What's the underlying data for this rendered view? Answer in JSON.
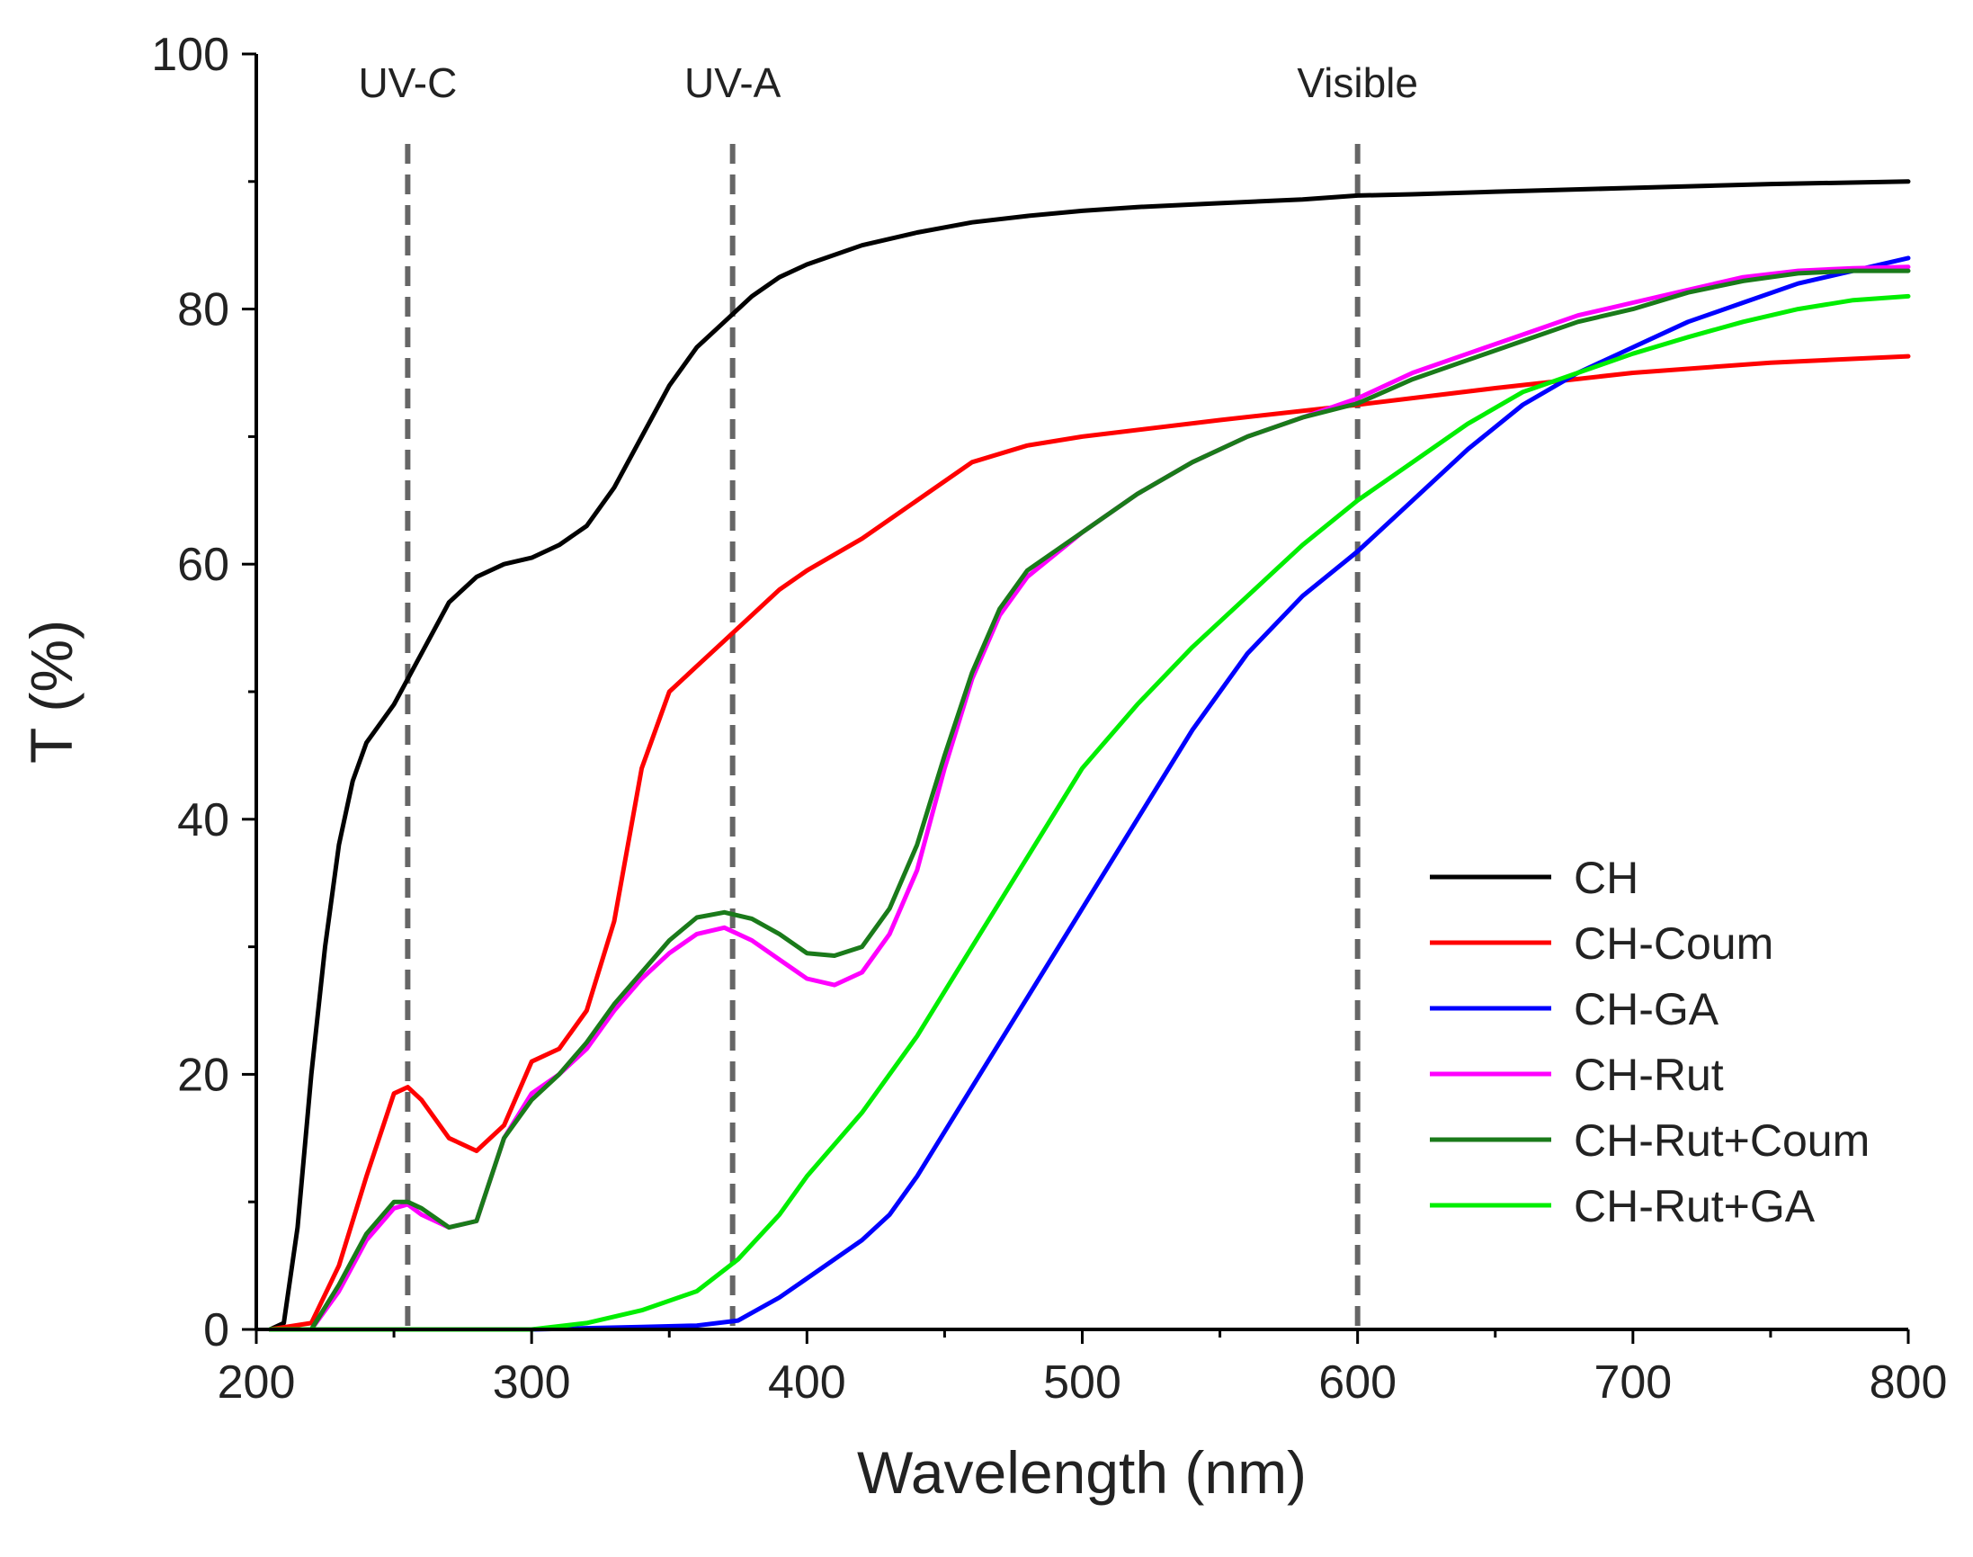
{
  "chart_data": {
    "type": "line",
    "xlabel": "Wavelength (nm)",
    "ylabel": "T (%)",
    "xlim": [
      200,
      800
    ],
    "ylim": [
      0,
      100
    ],
    "x_ticks": [
      200,
      300,
      400,
      500,
      600,
      700,
      800
    ],
    "y_ticks": [
      0,
      20,
      40,
      60,
      80,
      100
    ],
    "grid": false,
    "legend_position": "bottom-right",
    "regions": [
      {
        "label": "UV-C",
        "x": 255
      },
      {
        "label": "UV-A",
        "x": 373
      },
      {
        "label": "Visible",
        "x": 600
      }
    ],
    "series": [
      {
        "name": "CH",
        "color": "#000000",
        "points": [
          [
            205,
            0
          ],
          [
            210,
            0.5
          ],
          [
            215,
            8
          ],
          [
            220,
            20
          ],
          [
            225,
            30
          ],
          [
            230,
            38
          ],
          [
            235,
            43
          ],
          [
            240,
            46
          ],
          [
            250,
            49
          ],
          [
            260,
            53
          ],
          [
            270,
            57
          ],
          [
            280,
            59
          ],
          [
            290,
            60
          ],
          [
            300,
            60.5
          ],
          [
            310,
            61.5
          ],
          [
            320,
            63
          ],
          [
            330,
            66
          ],
          [
            340,
            70
          ],
          [
            350,
            74
          ],
          [
            360,
            77
          ],
          [
            370,
            79
          ],
          [
            380,
            81
          ],
          [
            390,
            82.5
          ],
          [
            400,
            83.5
          ],
          [
            420,
            85
          ],
          [
            440,
            86
          ],
          [
            460,
            86.8
          ],
          [
            480,
            87.3
          ],
          [
            500,
            87.7
          ],
          [
            520,
            88
          ],
          [
            550,
            88.3
          ],
          [
            580,
            88.6
          ],
          [
            600,
            88.9
          ],
          [
            620,
            89
          ],
          [
            650,
            89.2
          ],
          [
            700,
            89.5
          ],
          [
            750,
            89.8
          ],
          [
            800,
            90
          ]
        ]
      },
      {
        "name": "CH-Coum",
        "color": "#ff0000",
        "points": [
          [
            205,
            0
          ],
          [
            220,
            0.5
          ],
          [
            230,
            5
          ],
          [
            240,
            12
          ],
          [
            250,
            18.5
          ],
          [
            255,
            19
          ],
          [
            260,
            18
          ],
          [
            270,
            15
          ],
          [
            280,
            14
          ],
          [
            290,
            16
          ],
          [
            300,
            21
          ],
          [
            310,
            22
          ],
          [
            320,
            25
          ],
          [
            330,
            32
          ],
          [
            340,
            44
          ],
          [
            350,
            50
          ],
          [
            360,
            52
          ],
          [
            370,
            54
          ],
          [
            380,
            56
          ],
          [
            390,
            58
          ],
          [
            400,
            59.5
          ],
          [
            420,
            62
          ],
          [
            440,
            65
          ],
          [
            460,
            68
          ],
          [
            480,
            69.3
          ],
          [
            500,
            70
          ],
          [
            550,
            71.3
          ],
          [
            600,
            72.5
          ],
          [
            650,
            73.8
          ],
          [
            700,
            75
          ],
          [
            750,
            75.8
          ],
          [
            800,
            76.3
          ]
        ]
      },
      {
        "name": "CH-GA",
        "color": "#0000ff",
        "points": [
          [
            205,
            0
          ],
          [
            300,
            0
          ],
          [
            340,
            0.2
          ],
          [
            360,
            0.3
          ],
          [
            375,
            0.7
          ],
          [
            390,
            2.5
          ],
          [
            400,
            4
          ],
          [
            420,
            7
          ],
          [
            430,
            9
          ],
          [
            440,
            12
          ],
          [
            460,
            19
          ],
          [
            480,
            26
          ],
          [
            500,
            33
          ],
          [
            520,
            40
          ],
          [
            540,
            47
          ],
          [
            560,
            53
          ],
          [
            580,
            57.5
          ],
          [
            600,
            61
          ],
          [
            620,
            65
          ],
          [
            640,
            69
          ],
          [
            660,
            72.5
          ],
          [
            680,
            75
          ],
          [
            700,
            77
          ],
          [
            720,
            79
          ],
          [
            740,
            80.5
          ],
          [
            760,
            82
          ],
          [
            780,
            83
          ],
          [
            800,
            84
          ]
        ]
      },
      {
        "name": "CH-Rut",
        "color": "#ff00ff",
        "points": [
          [
            205,
            0
          ],
          [
            220,
            0
          ],
          [
            230,
            3
          ],
          [
            240,
            7
          ],
          [
            250,
            9.5
          ],
          [
            255,
            9.8
          ],
          [
            260,
            9
          ],
          [
            270,
            8
          ],
          [
            280,
            8.5
          ],
          [
            290,
            15
          ],
          [
            300,
            18.5
          ],
          [
            310,
            20
          ],
          [
            320,
            22
          ],
          [
            330,
            25
          ],
          [
            340,
            27.5
          ],
          [
            350,
            29.5
          ],
          [
            360,
            31
          ],
          [
            370,
            31.5
          ],
          [
            380,
            30.5
          ],
          [
            390,
            29
          ],
          [
            400,
            27.5
          ],
          [
            410,
            27
          ],
          [
            420,
            28
          ],
          [
            430,
            31
          ],
          [
            440,
            36
          ],
          [
            450,
            44
          ],
          [
            460,
            51
          ],
          [
            470,
            56
          ],
          [
            480,
            59
          ],
          [
            500,
            62.5
          ],
          [
            520,
            65.5
          ],
          [
            540,
            68
          ],
          [
            560,
            70
          ],
          [
            580,
            71.5
          ],
          [
            600,
            73
          ],
          [
            620,
            75
          ],
          [
            640,
            76.5
          ],
          [
            660,
            78
          ],
          [
            680,
            79.5
          ],
          [
            700,
            80.5
          ],
          [
            720,
            81.5
          ],
          [
            740,
            82.5
          ],
          [
            760,
            83
          ],
          [
            780,
            83.2
          ],
          [
            800,
            83.3
          ]
        ]
      },
      {
        "name": "CH-Rut+Coum",
        "color": "#1a7a1a",
        "points": [
          [
            205,
            0
          ],
          [
            220,
            0
          ],
          [
            230,
            3.5
          ],
          [
            240,
            7.5
          ],
          [
            250,
            10
          ],
          [
            255,
            10
          ],
          [
            260,
            9.5
          ],
          [
            270,
            8
          ],
          [
            280,
            8.5
          ],
          [
            290,
            15
          ],
          [
            300,
            18
          ],
          [
            310,
            20
          ],
          [
            320,
            22.5
          ],
          [
            330,
            25.5
          ],
          [
            340,
            28
          ],
          [
            350,
            30.5
          ],
          [
            360,
            32.3
          ],
          [
            370,
            32.7
          ],
          [
            380,
            32.2
          ],
          [
            390,
            31
          ],
          [
            400,
            29.5
          ],
          [
            410,
            29.3
          ],
          [
            420,
            30
          ],
          [
            430,
            33
          ],
          [
            440,
            38
          ],
          [
            450,
            45
          ],
          [
            460,
            51.5
          ],
          [
            470,
            56.5
          ],
          [
            480,
            59.5
          ],
          [
            500,
            62.5
          ],
          [
            520,
            65.5
          ],
          [
            540,
            68
          ],
          [
            560,
            70
          ],
          [
            580,
            71.5
          ],
          [
            600,
            72.6
          ],
          [
            620,
            74.5
          ],
          [
            640,
            76
          ],
          [
            660,
            77.5
          ],
          [
            680,
            79
          ],
          [
            700,
            80
          ],
          [
            720,
            81.3
          ],
          [
            740,
            82.2
          ],
          [
            760,
            82.8
          ],
          [
            780,
            83
          ],
          [
            800,
            83
          ]
        ]
      },
      {
        "name": "CH-Rut+GA",
        "color": "#00ee00",
        "points": [
          [
            205,
            0
          ],
          [
            300,
            0
          ],
          [
            320,
            0.5
          ],
          [
            340,
            1.5
          ],
          [
            360,
            3
          ],
          [
            375,
            5.5
          ],
          [
            390,
            9
          ],
          [
            400,
            12
          ],
          [
            420,
            17
          ],
          [
            440,
            23
          ],
          [
            460,
            30
          ],
          [
            480,
            37
          ],
          [
            500,
            44
          ],
          [
            520,
            49
          ],
          [
            540,
            53.5
          ],
          [
            560,
            57.5
          ],
          [
            580,
            61.5
          ],
          [
            600,
            65
          ],
          [
            620,
            68
          ],
          [
            640,
            71
          ],
          [
            660,
            73.5
          ],
          [
            680,
            75
          ],
          [
            700,
            76.5
          ],
          [
            720,
            77.8
          ],
          [
            740,
            79
          ],
          [
            760,
            80
          ],
          [
            780,
            80.7
          ],
          [
            800,
            81
          ]
        ]
      }
    ]
  }
}
